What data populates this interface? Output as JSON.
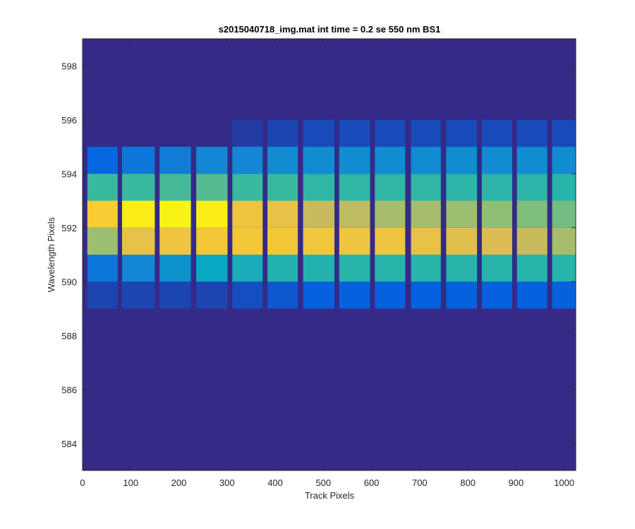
{
  "chart_data": {
    "type": "heatmap",
    "title": "s2015040718_img.mat int time = 0.2 se  550 nm BS1",
    "xlabel": "Track Pixels",
    "ylabel": "Wavelength Pixels",
    "xlim": [
      0,
      1024
    ],
    "ylim": [
      583,
      599
    ],
    "xticks": [
      0,
      100,
      200,
      300,
      400,
      500,
      600,
      700,
      800,
      900,
      1000
    ],
    "yticks": [
      584,
      586,
      588,
      590,
      592,
      594,
      596,
      598
    ],
    "grid": false,
    "colormap": "parula",
    "background_color": "#352a87",
    "bands": [
      {
        "x": [
          10,
          73
        ]
      },
      {
        "x": [
          82,
          150
        ]
      },
      {
        "x": [
          160,
          225
        ]
      },
      {
        "x": [
          236,
          301
        ]
      },
      {
        "x": [
          311,
          374
        ]
      },
      {
        "x": [
          384,
          447
        ]
      },
      {
        "x": [
          458,
          523
        ]
      },
      {
        "x": [
          533,
          597
        ]
      },
      {
        "x": [
          607,
          670
        ]
      },
      {
        "x": [
          682,
          744
        ]
      },
      {
        "x": [
          755,
          819
        ]
      },
      {
        "x": [
          829,
          892
        ]
      },
      {
        "x": [
          902,
          965
        ]
      },
      {
        "x": [
          975,
          1024
        ]
      }
    ],
    "rows": [
      {
        "y": [
          589,
          590
        ],
        "values": [
          0.06,
          0.06,
          0.06,
          0.06,
          0.08,
          0.1,
          0.12,
          0.12,
          0.12,
          0.12,
          0.12,
          0.12,
          0.12,
          0.12
        ]
      },
      {
        "y": [
          590,
          591
        ],
        "values": [
          0.2,
          0.26,
          0.3,
          0.38,
          0.42,
          0.45,
          0.45,
          0.46,
          0.46,
          0.46,
          0.46,
          0.46,
          0.46,
          0.46
        ]
      },
      {
        "y": [
          591,
          592
        ],
        "values": [
          0.64,
          0.8,
          0.82,
          0.84,
          0.84,
          0.84,
          0.83,
          0.82,
          0.82,
          0.8,
          0.78,
          0.76,
          0.72,
          0.66
        ]
      },
      {
        "y": [
          592,
          593
        ],
        "values": [
          0.86,
          0.96,
          0.98,
          0.96,
          0.82,
          0.8,
          0.72,
          0.7,
          0.66,
          0.66,
          0.64,
          0.62,
          0.6,
          0.58
        ]
      },
      {
        "y": [
          593,
          594
        ],
        "values": [
          0.5,
          0.5,
          0.52,
          0.54,
          0.5,
          0.5,
          0.48,
          0.48,
          0.48,
          0.48,
          0.47,
          0.47,
          0.47,
          0.46
        ]
      },
      {
        "y": [
          594,
          595
        ],
        "values": [
          0.14,
          0.2,
          0.22,
          0.26,
          0.26,
          0.28,
          0.28,
          0.28,
          0.28,
          0.28,
          0.28,
          0.28,
          0.28,
          0.28
        ]
      },
      {
        "y": [
          595,
          596
        ],
        "values": [
          0.0,
          0.0,
          0.0,
          0.0,
          0.04,
          0.06,
          0.07,
          0.07,
          0.07,
          0.07,
          0.07,
          0.07,
          0.07,
          0.07
        ]
      }
    ]
  }
}
